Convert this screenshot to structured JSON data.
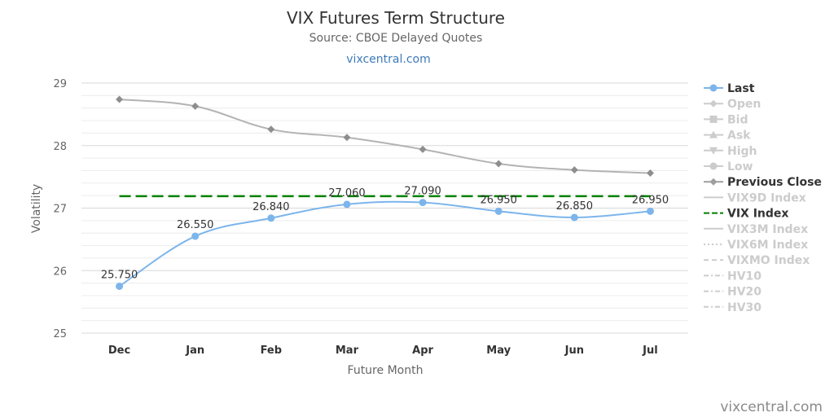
{
  "chart_data": {
    "type": "line",
    "title": "VIX Futures Term Structure",
    "subtitle": "Source: CBOE Delayed Quotes",
    "link_text": "vixcentral.com",
    "credit": "vixcentral.com",
    "xlabel": "Future Month",
    "ylabel": "Volatility",
    "categories": [
      "Dec",
      "Jan",
      "Feb",
      "Mar",
      "Apr",
      "May",
      "Jun",
      "Jul"
    ],
    "ylim": [
      25,
      29
    ],
    "yticks": [
      25,
      26,
      27,
      28,
      29
    ],
    "grid": true,
    "legend_position": "right",
    "series": [
      {
        "name": "Last",
        "visible": true,
        "color": "#7cb5ec",
        "marker": "circle",
        "values": [
          25.75,
          26.55,
          26.84,
          27.06,
          27.09,
          26.95,
          26.85,
          26.95
        ],
        "labels": [
          "25.750",
          "26.550",
          "26.840",
          "27.060",
          "27.090",
          "26.950",
          "26.850",
          "26.950"
        ]
      },
      {
        "name": "Previous Close",
        "visible": true,
        "color": "#9e9e9e",
        "marker": "diamond",
        "values": [
          28.74,
          28.63,
          28.26,
          28.13,
          27.94,
          27.71,
          27.61,
          27.56
        ]
      },
      {
        "name": "VIX Index",
        "visible": true,
        "color": "#008000",
        "dash": "dashed",
        "values": [
          27.19,
          27.19,
          27.19,
          27.19,
          27.19,
          27.19,
          27.19,
          27.19
        ]
      }
    ],
    "legend": [
      {
        "name": "Last",
        "active": true,
        "symbol": "circle",
        "color": "#7cb5ec"
      },
      {
        "name": "Open",
        "active": false,
        "symbol": "diamond"
      },
      {
        "name": "Bid",
        "active": false,
        "symbol": "square"
      },
      {
        "name": "Ask",
        "active": false,
        "symbol": "triangle"
      },
      {
        "name": "High",
        "active": false,
        "symbol": "triangle-down"
      },
      {
        "name": "Low",
        "active": false,
        "symbol": "circle"
      },
      {
        "name": "Previous Close",
        "active": true,
        "symbol": "diamond",
        "color": "#9e9e9e"
      },
      {
        "name": "VIX9D Index",
        "active": false,
        "symbol": "line"
      },
      {
        "name": "VIX Index",
        "active": true,
        "symbol": "dash",
        "color": "#008000"
      },
      {
        "name": "VIX3M Index",
        "active": false,
        "symbol": "line"
      },
      {
        "name": "VIX6M Index",
        "active": false,
        "symbol": "dotted"
      },
      {
        "name": "VIXMO Index",
        "active": false,
        "symbol": "longdash"
      },
      {
        "name": "HV10",
        "active": false,
        "symbol": "dashdot"
      },
      {
        "name": "HV20",
        "active": false,
        "symbol": "dashdot"
      },
      {
        "name": "HV30",
        "active": false,
        "symbol": "dashdot"
      }
    ]
  }
}
